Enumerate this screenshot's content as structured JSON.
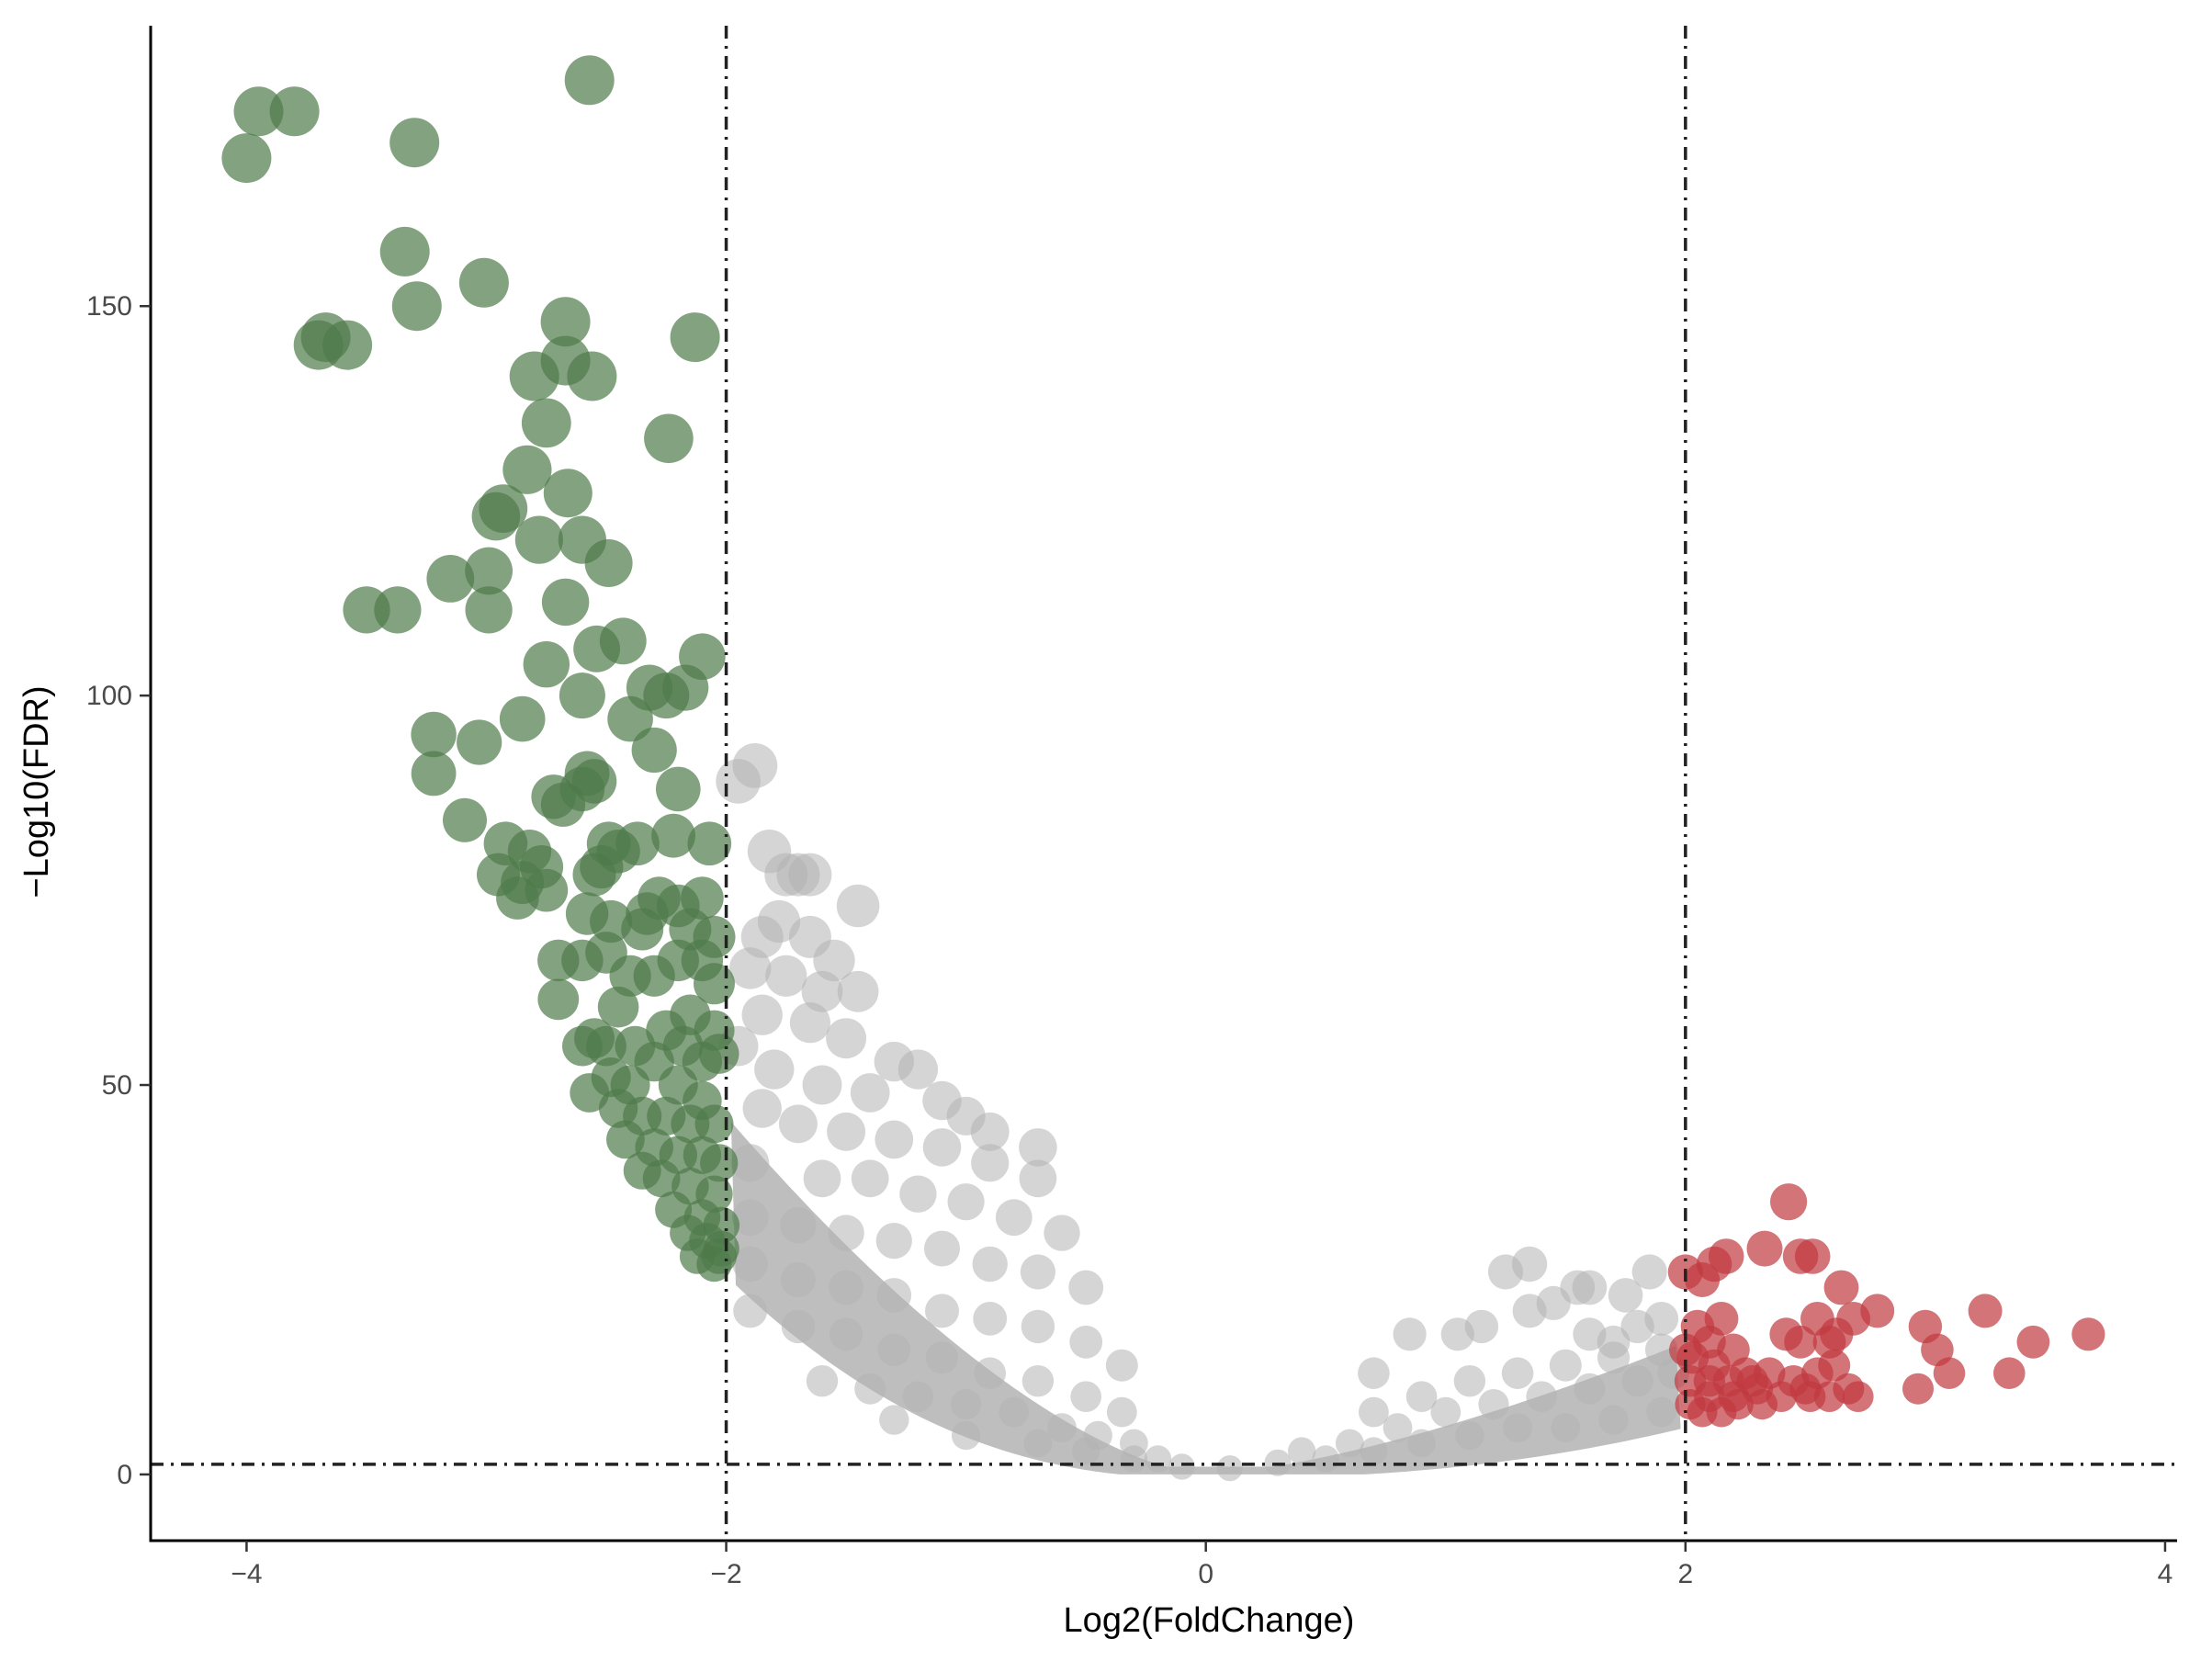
{
  "chart_data": {
    "type": "scatter",
    "title": "",
    "xlabel": "Log2(FoldChange)",
    "ylabel": "−Log10(FDR)",
    "xlim": [
      -4.4,
      4.05
    ],
    "ylim": [
      -8.5,
      186
    ],
    "x_ticks": [
      -4,
      -2,
      0,
      2,
      4
    ],
    "x_tick_labels": [
      "−4",
      "−2",
      "0",
      "2",
      "4"
    ],
    "y_ticks": [
      0,
      50,
      100,
      150
    ],
    "y_tick_labels": [
      "0",
      "50",
      "100",
      "150"
    ],
    "grid": false,
    "legend": "none",
    "thresholds": {
      "log2fc": [
        -2,
        2
      ],
      "neg_log10_fdr": 1.3
    },
    "colors": {
      "down": "#4e7a4a",
      "up": "#c0393f",
      "ns": "#b3b3b3",
      "threshold_line": "#222222"
    },
    "series": [
      {
        "group": "down",
        "points": [
          [
            -4.0,
            169
          ],
          [
            -3.95,
            175
          ],
          [
            -3.8,
            175
          ],
          [
            -2.57,
            179
          ],
          [
            -3.3,
            171
          ],
          [
            -3.34,
            157
          ],
          [
            -3.29,
            150
          ],
          [
            -3.01,
            153
          ],
          [
            -3.7,
            145
          ],
          [
            -3.67,
            146
          ],
          [
            -3.58,
            145
          ],
          [
            -2.67,
            148
          ],
          [
            -2.67,
            143
          ],
          [
            -2.56,
            141
          ],
          [
            -2.8,
            141
          ],
          [
            -2.13,
            146
          ],
          [
            -2.24,
            133
          ],
          [
            -2.75,
            135
          ],
          [
            -2.83,
            129
          ],
          [
            -2.66,
            126
          ],
          [
            -2.96,
            123
          ],
          [
            -2.93,
            124
          ],
          [
            -2.78,
            120
          ],
          [
            -2.6,
            120
          ],
          [
            -2.49,
            117
          ],
          [
            -3.15,
            115
          ],
          [
            -2.99,
            116
          ],
          [
            -2.99,
            111
          ],
          [
            -3.5,
            111
          ],
          [
            -3.37,
            111
          ],
          [
            -2.67,
            112
          ],
          [
            -2.43,
            107
          ],
          [
            -2.54,
            106
          ],
          [
            -2.75,
            104
          ],
          [
            -2.1,
            105
          ],
          [
            -2.6,
            100
          ],
          [
            -2.32,
            101
          ],
          [
            -2.17,
            101
          ],
          [
            -2.25,
            100
          ],
          [
            -3.22,
            95
          ],
          [
            -3.03,
            94
          ],
          [
            -2.85,
            97
          ],
          [
            -2.4,
            97
          ],
          [
            -2.3,
            93
          ],
          [
            -3.22,
            90
          ],
          [
            -2.72,
            87
          ],
          [
            -2.58,
            90
          ],
          [
            -2.55,
            89
          ],
          [
            -2.6,
            88
          ],
          [
            -2.68,
            86
          ],
          [
            -2.2,
            88
          ],
          [
            -3.09,
            84
          ],
          [
            -2.92,
            81
          ],
          [
            -2.82,
            80
          ],
          [
            -2.77,
            78
          ],
          [
            -2.49,
            81
          ],
          [
            -2.45,
            80
          ],
          [
            -2.37,
            81
          ],
          [
            -2.22,
            82
          ],
          [
            -2.07,
            81
          ],
          [
            -2.52,
            78
          ],
          [
            -2.95,
            77
          ],
          [
            -2.85,
            76
          ],
          [
            -2.75,
            75
          ],
          [
            -2.55,
            77
          ],
          [
            -2.28,
            74
          ],
          [
            -2.1,
            74
          ],
          [
            -2.2,
            73
          ],
          [
            -2.33,
            72
          ],
          [
            -2.87,
            74
          ],
          [
            -2.48,
            71
          ],
          [
            -2.58,
            72
          ],
          [
            -2.35,
            70
          ],
          [
            -2.15,
            70
          ],
          [
            -2.05,
            69
          ],
          [
            -2.7,
            66
          ],
          [
            -2.6,
            66
          ],
          [
            -2.5,
            67
          ],
          [
            -2.4,
            64
          ],
          [
            -2.3,
            64
          ],
          [
            -2.2,
            66
          ],
          [
            -2.1,
            66
          ],
          [
            -2.05,
            63
          ],
          [
            -2.7,
            61
          ],
          [
            -2.45,
            60
          ],
          [
            -2.15,
            59
          ],
          [
            -2.25,
            57
          ],
          [
            -2.05,
            57
          ],
          [
            -2.55,
            56
          ],
          [
            -2.6,
            55
          ],
          [
            -2.5,
            55
          ],
          [
            -2.38,
            55
          ],
          [
            -2.3,
            53
          ],
          [
            -2.18,
            55
          ],
          [
            -2.1,
            53
          ],
          [
            -2.03,
            54
          ],
          [
            -2.48,
            51
          ],
          [
            -2.4,
            50
          ],
          [
            -2.2,
            50
          ],
          [
            -2.1,
            48
          ],
          [
            -2.57,
            49
          ],
          [
            -2.45,
            47
          ],
          [
            -2.35,
            46
          ],
          [
            -2.25,
            46
          ],
          [
            -2.15,
            45
          ],
          [
            -2.05,
            45
          ],
          [
            -2.42,
            43
          ],
          [
            -2.3,
            42
          ],
          [
            -2.2,
            41
          ],
          [
            -2.1,
            41
          ],
          [
            -2.03,
            40
          ],
          [
            -2.35,
            39
          ],
          [
            -2.27,
            38
          ],
          [
            -2.15,
            37
          ],
          [
            -2.05,
            36
          ],
          [
            -2.22,
            34
          ],
          [
            -2.1,
            33
          ],
          [
            -2.02,
            32
          ],
          [
            -2.16,
            31
          ],
          [
            -2.08,
            30
          ],
          [
            -2.02,
            29
          ],
          [
            -2.12,
            28
          ],
          [
            -2.03,
            28
          ],
          [
            -2.05,
            27
          ]
        ]
      },
      {
        "group": "up",
        "points": [
          [
            2.43,
            35
          ],
          [
            2.33,
            29
          ],
          [
            2.48,
            28
          ],
          [
            2.53,
            28
          ],
          [
            2.17,
            28
          ],
          [
            2.12,
            27
          ],
          [
            2.0,
            26
          ],
          [
            2.07,
            25
          ],
          [
            2.65,
            24
          ],
          [
            2.8,
            21
          ],
          [
            2.7,
            20
          ],
          [
            3.25,
            21
          ],
          [
            2.55,
            20
          ],
          [
            2.42,
            18
          ],
          [
            2.48,
            17
          ],
          [
            2.6,
            17
          ],
          [
            2.63,
            18
          ],
          [
            3.0,
            19
          ],
          [
            3.05,
            16
          ],
          [
            3.45,
            17
          ],
          [
            3.68,
            18
          ],
          [
            2.15,
            20
          ],
          [
            2.05,
            19
          ],
          [
            2.1,
            17
          ],
          [
            2.2,
            16
          ],
          [
            2.0,
            16
          ],
          [
            2.03,
            15
          ],
          [
            2.12,
            14
          ],
          [
            2.25,
            13
          ],
          [
            2.35,
            13
          ],
          [
            2.45,
            12
          ],
          [
            2.55,
            13
          ],
          [
            2.62,
            14
          ],
          [
            3.1,
            13
          ],
          [
            3.35,
            13
          ],
          [
            2.97,
            11
          ],
          [
            2.72,
            10
          ],
          [
            2.68,
            11
          ],
          [
            2.5,
            11
          ],
          [
            2.3,
            11
          ],
          [
            2.2,
            10
          ],
          [
            2.1,
            10
          ],
          [
            2.02,
            9
          ],
          [
            2.07,
            8
          ],
          [
            2.15,
            8
          ],
          [
            2.22,
            9
          ],
          [
            2.32,
            9
          ],
          [
            2.4,
            10
          ],
          [
            2.52,
            10
          ],
          [
            2.6,
            10
          ],
          [
            2.02,
            12
          ],
          [
            2.1,
            12
          ],
          [
            2.18,
            12
          ],
          [
            2.28,
            12
          ]
        ]
      },
      {
        "group": "ns",
        "points": [
          [
            -1.88,
            91
          ],
          [
            -1.95,
            89
          ],
          [
            -1.82,
            80
          ],
          [
            -1.75,
            77
          ],
          [
            -1.7,
            77
          ],
          [
            -1.65,
            77
          ],
          [
            -1.45,
            73
          ],
          [
            -1.78,
            71
          ],
          [
            -1.85,
            69
          ],
          [
            -1.65,
            69
          ],
          [
            -1.55,
            66
          ],
          [
            -1.9,
            65
          ],
          [
            -1.75,
            64
          ],
          [
            -1.6,
            62
          ],
          [
            -1.45,
            62
          ],
          [
            -1.85,
            59
          ],
          [
            -1.65,
            58
          ],
          [
            -1.5,
            56
          ],
          [
            -1.3,
            53
          ],
          [
            -1.2,
            52
          ],
          [
            -1.95,
            55
          ],
          [
            -1.8,
            52
          ],
          [
            -1.6,
            50
          ],
          [
            -1.4,
            49
          ],
          [
            -1.1,
            48
          ],
          [
            -1.0,
            46
          ],
          [
            -0.9,
            44
          ],
          [
            -0.7,
            42
          ],
          [
            -1.85,
            47
          ],
          [
            -1.7,
            45
          ],
          [
            -1.5,
            44
          ],
          [
            -1.3,
            43
          ],
          [
            -1.1,
            42
          ],
          [
            -0.9,
            40
          ],
          [
            -0.7,
            38
          ],
          [
            -1.9,
            40
          ],
          [
            -1.6,
            38
          ],
          [
            -1.4,
            38
          ],
          [
            -1.2,
            36
          ],
          [
            -1.0,
            35
          ],
          [
            -0.8,
            33
          ],
          [
            -0.6,
            31
          ],
          [
            -1.9,
            33
          ],
          [
            -1.7,
            32
          ],
          [
            -1.5,
            31
          ],
          [
            -1.3,
            30
          ],
          [
            -1.1,
            29
          ],
          [
            -0.9,
            27
          ],
          [
            -0.7,
            26
          ],
          [
            -0.5,
            24
          ],
          [
            -1.9,
            27
          ],
          [
            -1.7,
            25
          ],
          [
            -1.5,
            24
          ],
          [
            -1.3,
            23
          ],
          [
            -1.1,
            21
          ],
          [
            -0.9,
            20
          ],
          [
            -0.7,
            19
          ],
          [
            -0.5,
            17
          ],
          [
            -0.35,
            14
          ],
          [
            -1.9,
            21
          ],
          [
            -1.7,
            19
          ],
          [
            -1.5,
            18
          ],
          [
            -1.3,
            16
          ],
          [
            -1.1,
            15
          ],
          [
            -0.9,
            13
          ],
          [
            -0.7,
            12
          ],
          [
            -0.5,
            10
          ],
          [
            -0.35,
            8
          ],
          [
            -1.6,
            12
          ],
          [
            -1.4,
            11
          ],
          [
            -1.2,
            10
          ],
          [
            -1.0,
            9
          ],
          [
            -0.8,
            8
          ],
          [
            -0.6,
            6
          ],
          [
            -0.45,
            5
          ],
          [
            -0.3,
            4
          ],
          [
            -0.2,
            2
          ],
          [
            -1.3,
            7
          ],
          [
            -1.0,
            5
          ],
          [
            -0.7,
            4
          ],
          [
            -0.5,
            3
          ],
          [
            -0.3,
            2
          ],
          [
            -0.1,
            1
          ],
          [
            0.1,
            0.8
          ],
          [
            0.3,
            1.5
          ],
          [
            0.5,
            2
          ],
          [
            0.7,
            3
          ],
          [
            0.9,
            4
          ],
          [
            1.1,
            5
          ],
          [
            1.3,
            6
          ],
          [
            1.5,
            6
          ],
          [
            1.7,
            7
          ],
          [
            1.9,
            8
          ],
          [
            0.4,
            3
          ],
          [
            0.6,
            4
          ],
          [
            0.8,
            6
          ],
          [
            1.0,
            8
          ],
          [
            1.2,
            9
          ],
          [
            1.4,
            10
          ],
          [
            1.6,
            11
          ],
          [
            1.8,
            12
          ],
          [
            1.95,
            13
          ],
          [
            0.7,
            8
          ],
          [
            0.9,
            10
          ],
          [
            1.1,
            12
          ],
          [
            1.3,
            13
          ],
          [
            1.5,
            14
          ],
          [
            1.7,
            15
          ],
          [
            1.9,
            16
          ],
          [
            1.05,
            18
          ],
          [
            1.15,
            19
          ],
          [
            1.35,
            21
          ],
          [
            1.45,
            22
          ],
          [
            1.25,
            26
          ],
          [
            1.35,
            27
          ],
          [
            1.55,
            24
          ],
          [
            1.6,
            24
          ],
          [
            1.75,
            23
          ],
          [
            1.85,
            26
          ],
          [
            0.85,
            18
          ],
          [
            0.7,
            13
          ],
          [
            1.6,
            18
          ],
          [
            1.7,
            17
          ],
          [
            1.8,
            19
          ],
          [
            1.9,
            20
          ]
        ]
      }
    ]
  }
}
